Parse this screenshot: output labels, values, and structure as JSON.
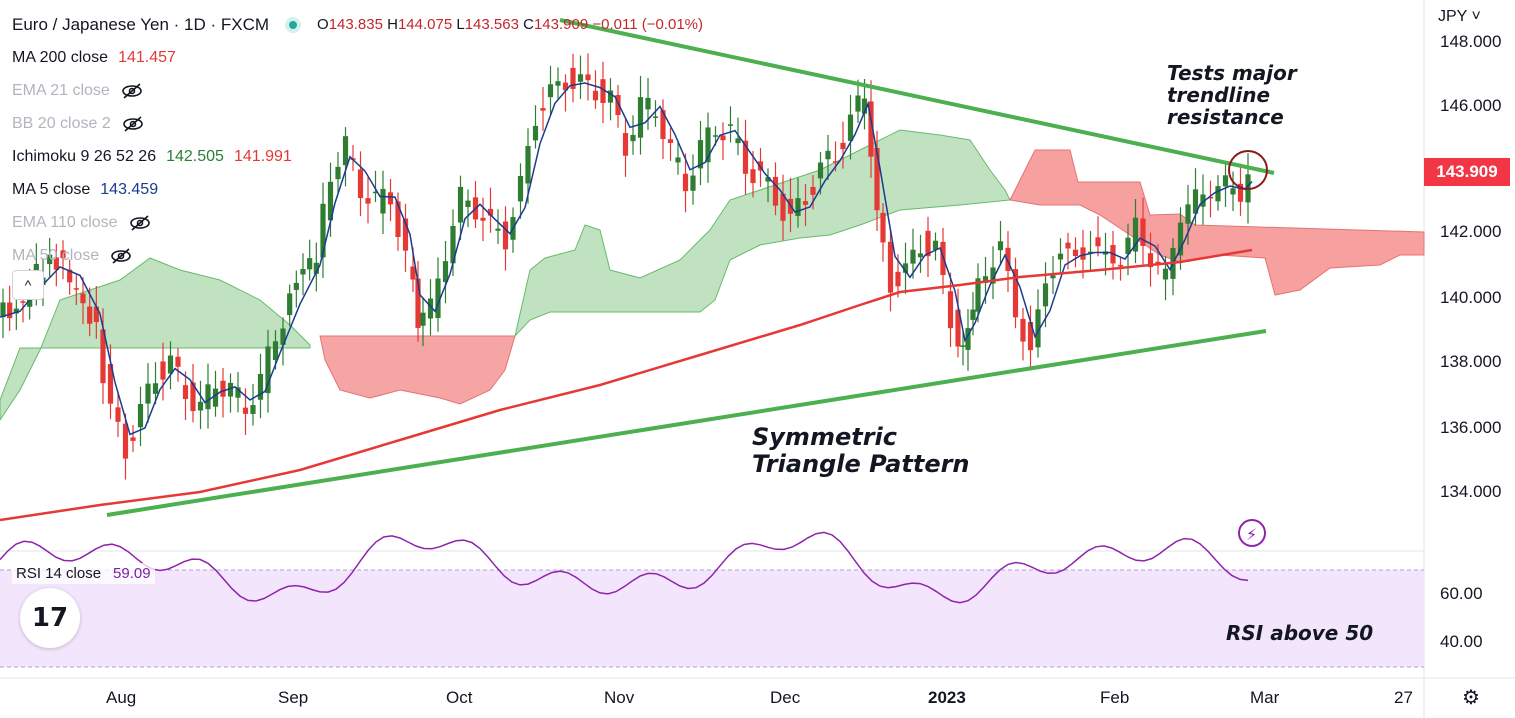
{
  "header": {
    "symbol_title": "Euro / Japanese Yen · 1D · FXCM",
    "ohlc": {
      "o_label": "O",
      "o": "143.835",
      "h_label": "H",
      "h": "144.075",
      "l_label": "L",
      "l": "143.563",
      "c_label": "C",
      "c": "143.909",
      "change": "−0.011 (−0.01%)"
    }
  },
  "indicators": [
    {
      "label": "MA 200 close",
      "value": "141.457",
      "hidden": false,
      "color": "#e53935"
    },
    {
      "label": "EMA 21 close",
      "value": "",
      "hidden": true
    },
    {
      "label": "BB 20 close 2",
      "value": "",
      "hidden": true
    },
    {
      "label": "Ichimoku 9 26 52 26",
      "value": "142.505",
      "value2": "141.991",
      "hidden": false,
      "color": "#2e7d32",
      "color2": "#e53935"
    },
    {
      "label": "MA 5 close",
      "value": "143.459",
      "hidden": false,
      "color": "#1a3b8f"
    },
    {
      "label": "EMA 110 close",
      "value": "",
      "hidden": true
    },
    {
      "label": "MA 50 close",
      "value": "",
      "hidden": true
    }
  ],
  "collapse_label": "^",
  "rsi": {
    "label": "RSI 14 close",
    "value": "59.09",
    "ticks": [
      "60.00",
      "40.00"
    ],
    "color": "#8e24aa"
  },
  "currency": "JPY ˅",
  "last_price": "143.909",
  "price_ticks": [
    "148.000",
    "146.000",
    "144.000",
    "142.000",
    "140.000",
    "138.000",
    "136.000",
    "134.000"
  ],
  "time_ticks": [
    "Aug",
    "Sep",
    "Oct",
    "Nov",
    "Dec",
    "2023",
    "Feb",
    "Mar",
    "27"
  ],
  "annotations": {
    "resistance": [
      "Tests major",
      "trendline",
      "resistance"
    ],
    "pattern": [
      "Symmetric",
      "Triangle Pattern"
    ],
    "rsi_note": "RSI above 50"
  },
  "logo": "17",
  "colors": {
    "up": "#2e7d32",
    "down": "#e53935",
    "trend": "#4caf50",
    "ma200": "#e53935",
    "ma5": "#1a3b8f",
    "cloud_green": "#a5d6a7",
    "cloud_red": "#f48f8f",
    "rsi_bg": "#f3e5fc"
  }
}
